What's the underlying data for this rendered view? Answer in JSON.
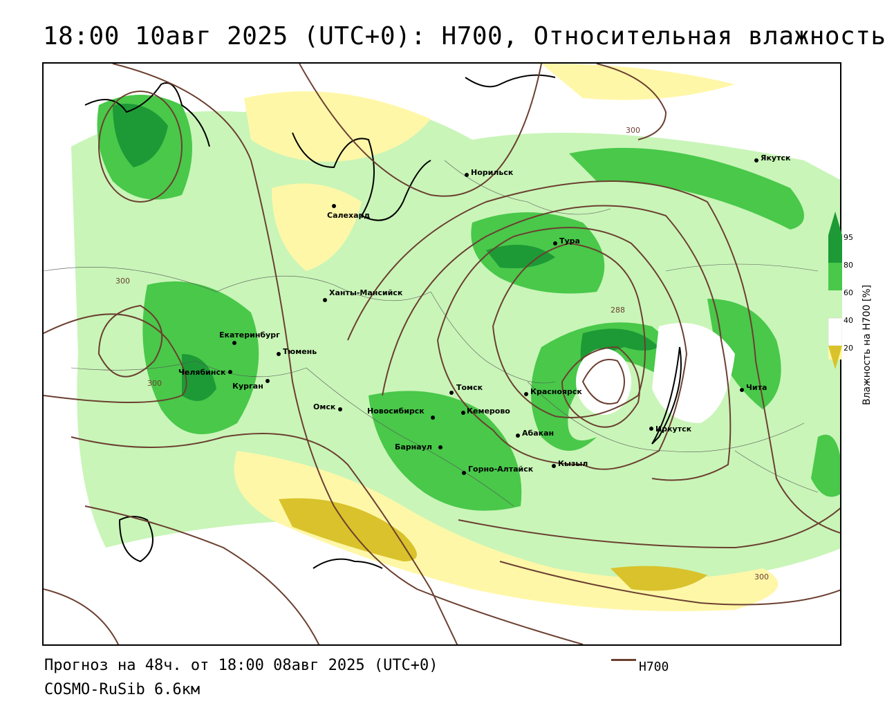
{
  "title": "18:00 10авг 2025 (UTC+0): H700, Относительная влажность",
  "footer": {
    "forecast": "Прогноз на 48ч. от 18:00 08авг 2025 (UTC+0)",
    "model": "COSMO-RuSib 6.6км"
  },
  "legend": {
    "line_label": "H700",
    "line_color": "#6b3f30"
  },
  "colorbar": {
    "title": "Влажность на H700 [%]",
    "ticks": [
      "95",
      "80",
      "60",
      "40",
      "20"
    ],
    "colors": {
      "dry": "#d9c22b",
      "light_dry": "#fff7a8",
      "moist_light": "#c9f5b8",
      "moist": "#49c84a",
      "very_moist": "#1d9a36"
    }
  },
  "isolines": [
    "300",
    "300",
    "300",
    "300",
    "288"
  ],
  "cities": [
    {
      "name": "Якутск"
    },
    {
      "name": "Норильск"
    },
    {
      "name": "Салехард"
    },
    {
      "name": "Тура"
    },
    {
      "name": "Ханты-Мансийск"
    },
    {
      "name": "Екатеринбург"
    },
    {
      "name": "Тюмень"
    },
    {
      "name": "Челябинск"
    },
    {
      "name": "Курган"
    },
    {
      "name": "Омск"
    },
    {
      "name": "Новосибирск"
    },
    {
      "name": "Томск"
    },
    {
      "name": "Кемерово"
    },
    {
      "name": "Красноярск"
    },
    {
      "name": "Абакан"
    },
    {
      "name": "Барнаул"
    },
    {
      "name": "Горно-Алтайск"
    },
    {
      "name": "Кызыл"
    },
    {
      "name": "Иркутск"
    },
    {
      "name": "Чита"
    }
  ]
}
